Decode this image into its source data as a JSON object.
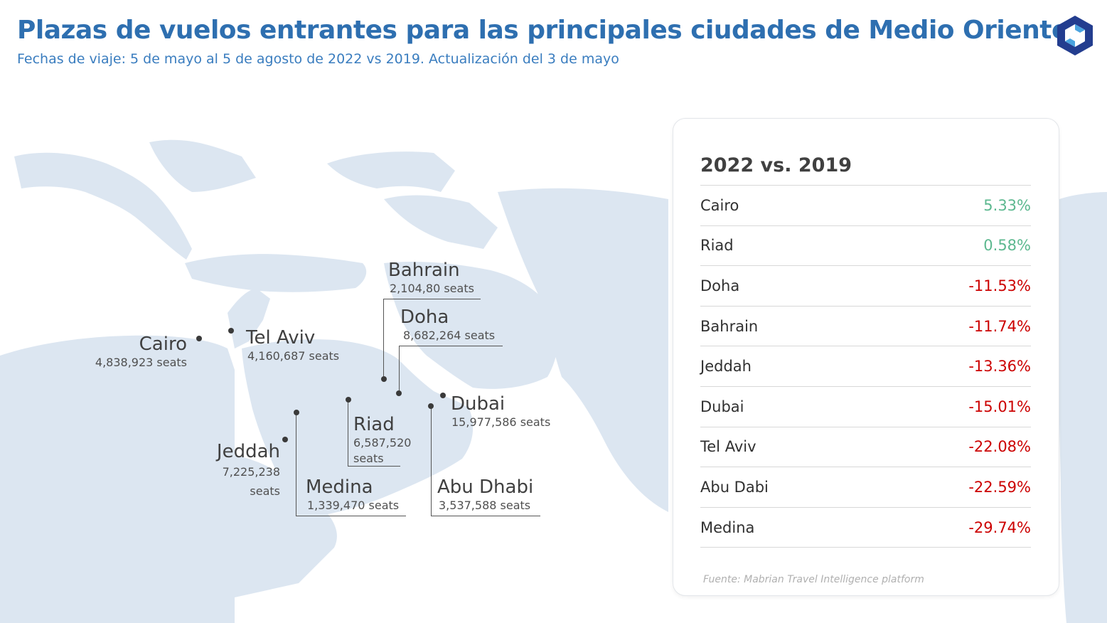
{
  "header": {
    "title": "Plazas de vuelos entrantes para las principales ciudades de Medio Oriente",
    "subtitle": "Fechas de viaje: 5 de mayo al 5 de agosto de 2022 vs 2019. Actualización del 3 de mayo",
    "title_color": "#2e6fb0",
    "subtitle_color": "#3a7dbf"
  },
  "logo": {
    "icon": "hexagon-logo-icon",
    "color": "#233d8f"
  },
  "map": {
    "land_color": "#dce6f1",
    "cities": [
      {
        "name": "Bahrain",
        "seats": "2,104,80 seats"
      },
      {
        "name": "Doha",
        "seats": "8,682,264 seats"
      },
      {
        "name": "Cairo",
        "seats": "4,838,923 seats"
      },
      {
        "name": "Tel Aviv",
        "seats": "4,160,687 seats"
      },
      {
        "name": "Dubai",
        "seats": "15,977,586 seats"
      },
      {
        "name": "Riad",
        "seats": "6,587,520 seats"
      },
      {
        "name": "Jeddah",
        "seats": "7,225,238 seats"
      },
      {
        "name": "Medina",
        "seats": "1,339,470 seats"
      },
      {
        "name": "Abu Dhabi",
        "seats": "3,537,588 seats"
      }
    ]
  },
  "panel": {
    "title": "2022 vs. 2019",
    "positive_color": "#5cb88f",
    "negative_color": "#cc0000",
    "rows": [
      {
        "city": "Cairo",
        "value": "5.33%",
        "positive": true
      },
      {
        "city": "Riad",
        "value": "0.58%",
        "positive": true
      },
      {
        "city": "Doha",
        "value": "-11.53%",
        "positive": false
      },
      {
        "city": "Bahrain",
        "value": "-11.74%",
        "positive": false
      },
      {
        "city": "Jeddah",
        "value": "-13.36%",
        "positive": false
      },
      {
        "city": "Dubai",
        "value": "-15.01%",
        "positive": false
      },
      {
        "city": "Tel Aviv",
        "value": "-22.08%",
        "positive": false
      },
      {
        "city": "Abu Dabi",
        "value": "-22.59%",
        "positive": false
      },
      {
        "city": "Medina",
        "value": "-29.74%",
        "positive": false
      }
    ],
    "source": "Fuente: Mabrian Travel Intelligence platform"
  }
}
